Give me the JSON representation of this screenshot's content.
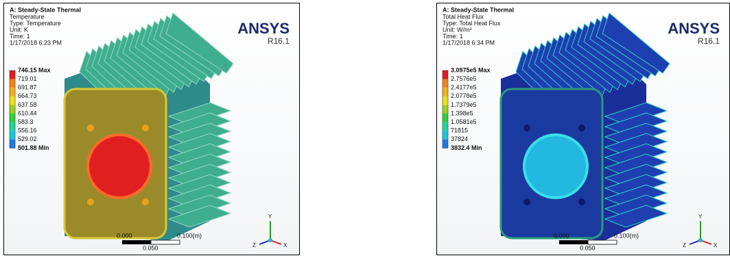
{
  "panels": [
    {
      "header": {
        "title": "A: Steady-State Thermal",
        "lines": [
          "Temperature",
          "Type: Temperature",
          "Unit: K",
          "Time: 1",
          "1/17/2018 6:23 PM"
        ]
      },
      "legend": [
        "746.15 Max",
        "719.01",
        "691.87",
        "664.73",
        "637.58",
        "610.44",
        "583.3",
        "556.16",
        "529.02",
        "501.88 Min"
      ],
      "logo": "ANSYS",
      "version": "R16.1",
      "scale": {
        "left": "0.000",
        "right": "0.100(m)",
        "mid": "0.050"
      },
      "axes": {
        "y": "Y",
        "z": "Z",
        "x": "X"
      }
    },
    {
      "header": {
        "title": "A: Steady-State Thermal",
        "lines": [
          "Total Heat Flux",
          "Type: Total Heat Flux",
          "Unit: W/m²",
          "Time: 1",
          "1/17/2018 6:34 PM"
        ]
      },
      "legend": [
        "3.0975e5 Max",
        "2.7576e5",
        "2.4177e5",
        "2.0778e5",
        "1.7379e5",
        "1.398e5",
        "1.0581e5",
        "71815",
        "37824",
        "3832.4 Min"
      ],
      "logo": "ANSYS",
      "version": "R16.1",
      "scale": {
        "left": "0.000",
        "right": "0.100(m)",
        "mid": "0.050"
      },
      "axes": {
        "y": "Y",
        "z": "Z",
        "x": "X"
      }
    }
  ]
}
